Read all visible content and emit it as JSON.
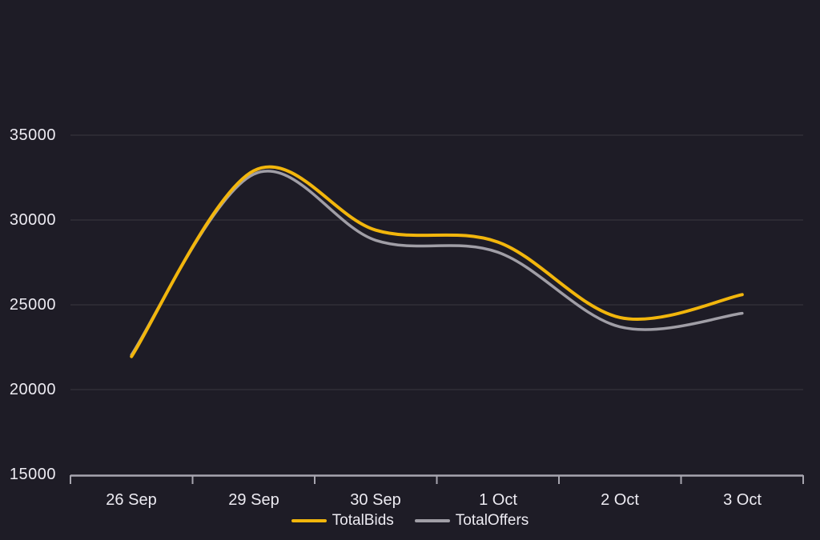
{
  "chart_data": {
    "type": "line",
    "categories": [
      "26 Sep",
      "29 Sep",
      "30 Sep",
      "1 Oct",
      "2 Oct",
      "3 Oct"
    ],
    "series": [
      {
        "name": "TotalBids",
        "color": "#F2B60C",
        "values": [
          21950,
          32900,
          29400,
          28700,
          24250,
          25600
        ]
      },
      {
        "name": "TotalOffers",
        "color": "#A09EA6",
        "values": [
          22050,
          32700,
          28800,
          28100,
          23700,
          24500
        ]
      }
    ],
    "y_ticks": [
      15000,
      20000,
      25000,
      30000,
      35000
    ],
    "y_tick_labels": [
      "15000",
      "20000",
      "25000",
      "30000",
      "35000"
    ],
    "ylim": [
      15000,
      35000
    ],
    "grid": "horizontal-only",
    "legend_position": "bottom-center",
    "colors": {
      "background": "#1E1C26",
      "text": "#EDEBF2",
      "gridline": "rgba(255,255,255,0.12)",
      "axis": "#A7A5AF"
    }
  }
}
